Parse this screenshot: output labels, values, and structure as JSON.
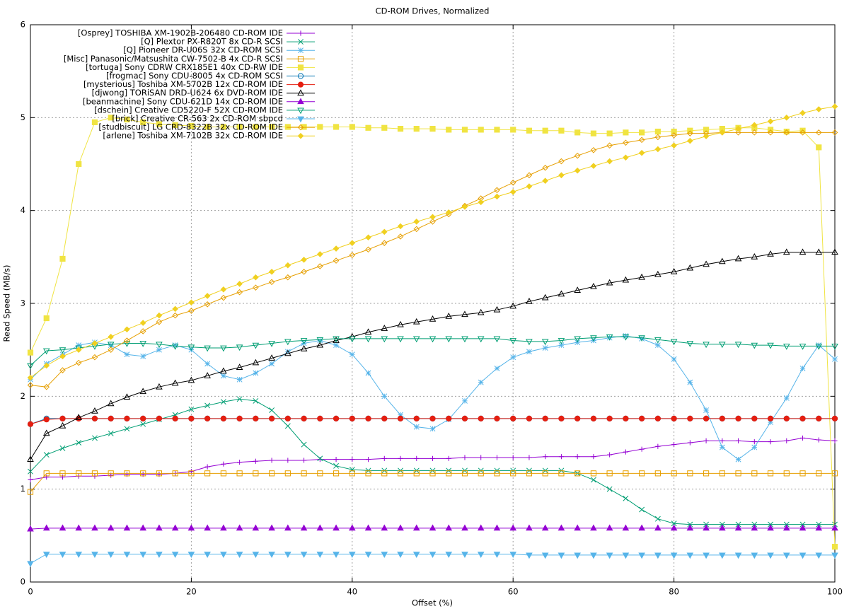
{
  "chart_data": {
    "type": "line",
    "title": "CD-ROM Drives, Normalized",
    "x_label": "Offset (%)",
    "y_label": "Read Speed (MB/s)",
    "xlim": [
      0,
      100
    ],
    "ylim": [
      0,
      6
    ],
    "xticks": [
      0,
      20,
      40,
      60,
      80,
      100
    ],
    "yticks": [
      0,
      1,
      2,
      3,
      4,
      5,
      6
    ],
    "grid": true,
    "legend": "top-left",
    "x": [
      0,
      2,
      4,
      6,
      8,
      10,
      12,
      14,
      16,
      18,
      20,
      22,
      24,
      26,
      28,
      30,
      32,
      34,
      36,
      38,
      40,
      42,
      44,
      46,
      48,
      50,
      52,
      54,
      56,
      58,
      60,
      62,
      64,
      66,
      68,
      70,
      72,
      74,
      76,
      78,
      80,
      82,
      84,
      86,
      88,
      90,
      92,
      94,
      96,
      98,
      100
    ],
    "series": [
      {
        "name": "[Osprey] TOSHIBA XM-1902B-206480 CD-ROM IDE",
        "color": "#9400d3",
        "marker": "plus",
        "values": [
          1.1,
          1.13,
          1.13,
          1.14,
          1.14,
          1.15,
          1.16,
          1.16,
          1.16,
          1.17,
          1.19,
          1.24,
          1.27,
          1.29,
          1.3,
          1.31,
          1.31,
          1.31,
          1.32,
          1.32,
          1.32,
          1.32,
          1.33,
          1.33,
          1.33,
          1.33,
          1.33,
          1.34,
          1.34,
          1.34,
          1.34,
          1.34,
          1.35,
          1.35,
          1.35,
          1.35,
          1.37,
          1.4,
          1.43,
          1.46,
          1.48,
          1.5,
          1.52,
          1.52,
          1.52,
          1.51,
          1.51,
          1.52,
          1.55,
          1.53,
          1.52
        ]
      },
      {
        "name": "[Q] Plextor PX-R820T 8x CD-R SCSI",
        "color": "#009e73",
        "marker": "cross",
        "values": [
          1.19,
          1.37,
          1.44,
          1.5,
          1.55,
          1.6,
          1.65,
          1.7,
          1.75,
          1.8,
          1.86,
          1.9,
          1.94,
          1.97,
          1.95,
          1.85,
          1.68,
          1.48,
          1.33,
          1.25,
          1.21,
          1.2,
          1.2,
          1.2,
          1.2,
          1.2,
          1.2,
          1.2,
          1.2,
          1.2,
          1.2,
          1.2,
          1.2,
          1.2,
          1.17,
          1.1,
          1.0,
          0.9,
          0.78,
          0.68,
          0.63,
          0.62,
          0.62,
          0.62,
          0.62,
          0.62,
          0.62,
          0.62,
          0.62,
          0.62,
          0.62
        ]
      },
      {
        "name": "[Q] Pioneer DR-U06S 32x CD-ROM SCSI",
        "color": "#56b4e9",
        "marker": "star",
        "values": [
          2.18,
          2.35,
          2.45,
          2.55,
          2.58,
          2.55,
          2.45,
          2.43,
          2.5,
          2.55,
          2.5,
          2.35,
          2.22,
          2.18,
          2.25,
          2.35,
          2.48,
          2.57,
          2.6,
          2.55,
          2.45,
          2.25,
          2.0,
          1.8,
          1.67,
          1.65,
          1.75,
          1.95,
          2.15,
          2.3,
          2.42,
          2.48,
          2.52,
          2.55,
          2.58,
          2.6,
          2.63,
          2.65,
          2.62,
          2.55,
          2.4,
          2.15,
          1.85,
          1.45,
          1.32,
          1.45,
          1.72,
          1.98,
          2.3,
          2.55,
          2.4
        ]
      },
      {
        "name": "[Misc] Panasonic/Matsushita CW-7502-B 4x CD-R SCSI",
        "color": "#e69f00",
        "marker": "square-open",
        "values": [
          0.97,
          1.17,
          1.17,
          1.17,
          1.17,
          1.17,
          1.17,
          1.17,
          1.17,
          1.17,
          1.17,
          1.17,
          1.17,
          1.17,
          1.17,
          1.17,
          1.17,
          1.17,
          1.17,
          1.17,
          1.17,
          1.17,
          1.17,
          1.17,
          1.17,
          1.17,
          1.17,
          1.17,
          1.17,
          1.17,
          1.17,
          1.17,
          1.17,
          1.17,
          1.17,
          1.17,
          1.17,
          1.17,
          1.17,
          1.17,
          1.17,
          1.17,
          1.17,
          1.17,
          1.17,
          1.17,
          1.17,
          1.17,
          1.17,
          1.17,
          1.17
        ]
      },
      {
        "name": "[tortuga] Sony CDRW CRX185E1 40x CD-RW IDE",
        "color": "#f0e442",
        "marker": "square",
        "values": [
          2.47,
          2.84,
          3.48,
          4.5,
          4.95,
          5.0,
          4.98,
          4.95,
          4.93,
          4.92,
          4.91,
          4.9,
          4.9,
          4.9,
          4.9,
          4.9,
          4.9,
          4.9,
          4.9,
          4.9,
          4.9,
          4.89,
          4.89,
          4.88,
          4.88,
          4.88,
          4.87,
          4.87,
          4.87,
          4.87,
          4.87,
          4.86,
          4.86,
          4.86,
          4.84,
          4.83,
          4.83,
          4.84,
          4.84,
          4.85,
          4.85,
          4.86,
          4.87,
          4.88,
          4.89,
          4.89,
          4.87,
          4.85,
          4.86,
          4.68,
          0.38
        ]
      },
      {
        "name": "[frogmac] Sony CDU-8005 4x CD-ROM SCSI",
        "color": "#0072b2",
        "marker": "circle-open",
        "values": [
          1.7,
          1.76,
          1.76,
          1.76,
          1.76,
          1.76,
          1.76,
          1.76,
          1.76,
          1.76,
          1.76,
          1.76,
          1.76,
          1.76,
          1.76,
          1.76,
          1.76,
          1.76,
          1.76,
          1.76,
          1.76,
          1.76,
          1.76,
          1.76,
          1.76,
          1.76,
          1.76,
          1.76,
          1.76,
          1.76,
          1.76,
          1.76,
          1.76,
          1.76,
          1.76,
          1.76,
          1.76,
          1.76,
          1.76,
          1.76,
          1.76,
          1.76,
          1.76,
          1.76,
          1.76,
          1.76,
          1.76,
          1.76,
          1.76,
          1.76,
          1.76
        ]
      },
      {
        "name": "[mysterious] Toshiba XM-5702B 12x CD-ROM IDE",
        "color": "#e51e10",
        "marker": "circle",
        "values": [
          1.7,
          1.75,
          1.76,
          1.76,
          1.76,
          1.76,
          1.76,
          1.76,
          1.76,
          1.76,
          1.76,
          1.76,
          1.76,
          1.76,
          1.76,
          1.76,
          1.76,
          1.76,
          1.76,
          1.76,
          1.76,
          1.76,
          1.76,
          1.76,
          1.76,
          1.76,
          1.76,
          1.76,
          1.76,
          1.76,
          1.76,
          1.76,
          1.76,
          1.76,
          1.76,
          1.76,
          1.76,
          1.76,
          1.76,
          1.76,
          1.76,
          1.76,
          1.76,
          1.76,
          1.76,
          1.76,
          1.76,
          1.76,
          1.76,
          1.76,
          1.76
        ]
      },
      {
        "name": "[djwong] TORiSAN DRD-U624 6x DVD-ROM IDE",
        "color": "#000000",
        "marker": "triangle-open",
        "values": [
          1.32,
          1.6,
          1.68,
          1.77,
          1.84,
          1.92,
          1.99,
          2.05,
          2.1,
          2.14,
          2.17,
          2.22,
          2.27,
          2.31,
          2.36,
          2.41,
          2.46,
          2.51,
          2.55,
          2.6,
          2.64,
          2.69,
          2.73,
          2.77,
          2.8,
          2.83,
          2.86,
          2.88,
          2.9,
          2.93,
          2.97,
          3.02,
          3.06,
          3.1,
          3.14,
          3.18,
          3.22,
          3.25,
          3.28,
          3.31,
          3.34,
          3.38,
          3.42,
          3.45,
          3.48,
          3.5,
          3.53,
          3.55,
          3.55,
          3.55,
          3.55
        ]
      },
      {
        "name": "[beanmachine] Sony CDU-621D 14x CD-ROM IDE",
        "color": "#9400d3",
        "marker": "triangle",
        "values": [
          0.57,
          0.58,
          0.58,
          0.58,
          0.58,
          0.58,
          0.58,
          0.58,
          0.58,
          0.58,
          0.58,
          0.58,
          0.58,
          0.58,
          0.58,
          0.58,
          0.58,
          0.58,
          0.58,
          0.58,
          0.58,
          0.58,
          0.58,
          0.58,
          0.58,
          0.58,
          0.58,
          0.58,
          0.58,
          0.58,
          0.58,
          0.58,
          0.58,
          0.58,
          0.58,
          0.58,
          0.58,
          0.58,
          0.58,
          0.58,
          0.58,
          0.58,
          0.58,
          0.58,
          0.58,
          0.58,
          0.58,
          0.58,
          0.58,
          0.58,
          0.58
        ]
      },
      {
        "name": "[dschein] Creative CD5220-F 52X CD-ROM IDE",
        "color": "#009e73",
        "marker": "dtriangle-open",
        "values": [
          2.33,
          2.49,
          2.5,
          2.52,
          2.54,
          2.56,
          2.57,
          2.57,
          2.56,
          2.54,
          2.53,
          2.52,
          2.52,
          2.53,
          2.55,
          2.57,
          2.59,
          2.6,
          2.61,
          2.62,
          2.62,
          2.62,
          2.62,
          2.62,
          2.62,
          2.62,
          2.62,
          2.62,
          2.62,
          2.62,
          2.6,
          2.59,
          2.59,
          2.6,
          2.62,
          2.63,
          2.64,
          2.64,
          2.63,
          2.61,
          2.59,
          2.57,
          2.56,
          2.56,
          2.56,
          2.55,
          2.55,
          2.54,
          2.54,
          2.54,
          2.54
        ]
      },
      {
        "name": "[brick] Creative CR-563 2x CD-ROM sbpcd",
        "color": "#56b4e9",
        "marker": "dtriangle",
        "values": [
          0.2,
          0.3,
          0.3,
          0.3,
          0.3,
          0.3,
          0.3,
          0.3,
          0.3,
          0.3,
          0.3,
          0.3,
          0.3,
          0.3,
          0.3,
          0.3,
          0.3,
          0.3,
          0.3,
          0.3,
          0.3,
          0.3,
          0.3,
          0.3,
          0.3,
          0.3,
          0.3,
          0.3,
          0.3,
          0.3,
          0.3,
          0.29,
          0.29,
          0.29,
          0.29,
          0.29,
          0.29,
          0.29,
          0.29,
          0.29,
          0.29,
          0.29,
          0.29,
          0.29,
          0.29,
          0.29,
          0.29,
          0.29,
          0.29,
          0.29,
          0.29
        ]
      },
      {
        "name": "[studbiscuit] LG CRD-8322B 32x CD-ROM IDE",
        "color": "#e69f00",
        "marker": "diamond-open",
        "values": [
          2.12,
          2.1,
          2.28,
          2.36,
          2.42,
          2.5,
          2.6,
          2.7,
          2.8,
          2.87,
          2.92,
          2.99,
          3.06,
          3.12,
          3.17,
          3.23,
          3.28,
          3.34,
          3.4,
          3.46,
          3.52,
          3.58,
          3.65,
          3.72,
          3.8,
          3.88,
          3.96,
          4.05,
          4.13,
          4.22,
          4.3,
          4.38,
          4.46,
          4.53,
          4.59,
          4.65,
          4.7,
          4.73,
          4.76,
          4.79,
          4.81,
          4.83,
          4.83,
          4.84,
          4.84,
          4.84,
          4.84,
          4.84,
          4.84,
          4.84,
          4.84
        ]
      },
      {
        "name": "[arlene] Toshiba XM-7102B 32x CD-ROM IDE",
        "color": "#f0d020",
        "marker": "diamond",
        "values": [
          2.2,
          2.33,
          2.43,
          2.5,
          2.57,
          2.64,
          2.72,
          2.79,
          2.87,
          2.94,
          3.01,
          3.08,
          3.15,
          3.21,
          3.28,
          3.34,
          3.41,
          3.47,
          3.53,
          3.59,
          3.65,
          3.71,
          3.77,
          3.83,
          3.88,
          3.93,
          3.98,
          4.04,
          4.09,
          4.15,
          4.2,
          4.26,
          4.32,
          4.38,
          4.43,
          4.48,
          4.53,
          4.57,
          4.62,
          4.66,
          4.7,
          4.75,
          4.8,
          4.84,
          4.88,
          4.92,
          4.96,
          5.0,
          5.05,
          5.09,
          5.12
        ]
      }
    ]
  }
}
